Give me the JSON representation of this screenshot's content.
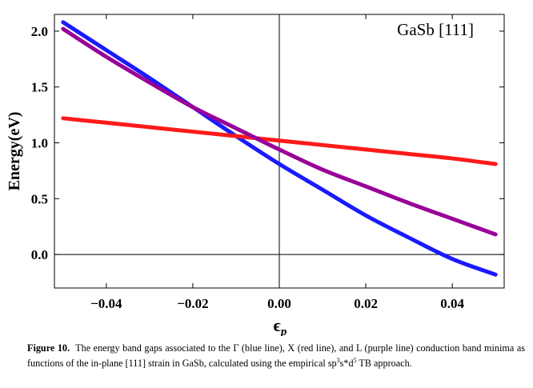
{
  "chart_data": {
    "type": "line",
    "title": "",
    "annotation": "GaSb [111]",
    "xlabel": "ϵ",
    "xlabel_sub": "p",
    "ylabel": "Energy(eV)",
    "xlim": [
      -0.052,
      0.052
    ],
    "ylim": [
      -0.3,
      2.15
    ],
    "xticks": [
      -0.04,
      -0.02,
      0.0,
      0.02,
      0.04
    ],
    "xtick_labels": [
      "−0.04",
      "−0.02",
      "0.00",
      "0.02",
      "0.04"
    ],
    "yticks": [
      0.0,
      0.5,
      1.0,
      1.5,
      2.0
    ],
    "ytick_labels": [
      "0.0",
      "0.5",
      "1.0",
      "1.5",
      "2.0"
    ],
    "series": [
      {
        "name": "Γ",
        "color": "#1a1aff",
        "x": [
          -0.05,
          -0.04,
          -0.03,
          -0.02,
          -0.01,
          0.0,
          0.01,
          0.02,
          0.03,
          0.04,
          0.05
        ],
        "y": [
          2.08,
          1.83,
          1.58,
          1.32,
          1.06,
          0.81,
          0.58,
          0.35,
          0.15,
          -0.04,
          -0.18
        ]
      },
      {
        "name": "X",
        "color": "#ff1a1a",
        "x": [
          -0.05,
          -0.04,
          -0.03,
          -0.02,
          -0.01,
          0.0,
          0.01,
          0.02,
          0.03,
          0.04,
          0.05
        ],
        "y": [
          1.22,
          1.18,
          1.14,
          1.1,
          1.06,
          1.02,
          0.98,
          0.94,
          0.9,
          0.86,
          0.81
        ]
      },
      {
        "name": "L",
        "color": "#990099",
        "x": [
          -0.05,
          -0.04,
          -0.03,
          -0.02,
          -0.01,
          0.0,
          0.01,
          0.02,
          0.03,
          0.04,
          0.05
        ],
        "y": [
          2.02,
          1.77,
          1.54,
          1.32,
          1.13,
          0.94,
          0.76,
          0.61,
          0.46,
          0.32,
          0.18
        ]
      }
    ]
  },
  "caption": {
    "label": "Figure 10.",
    "text_part1": "The energy band gaps associated to the Γ (blue line), X (red line), and L (purple line) conduction band minima as functions of the in-plane [111] strain in GaSb, calculated using the empirical sp",
    "sup1": "3",
    "text_part2": "s*d",
    "sup2": "5",
    "text_part3": " TB approach."
  }
}
